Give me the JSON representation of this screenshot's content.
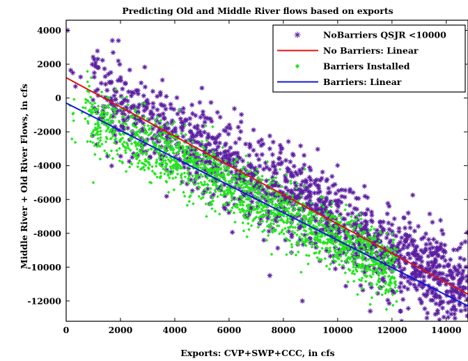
{
  "chart_data": {
    "type": "scatter",
    "title": "Predicting Old and Middle River flows based on exports",
    "xlabel": "Exports: CVP+SWP+CCC, in cfs",
    "ylabel": "Middle River + Old River Flows, in cfs",
    "xlim": [
      0,
      14800
    ],
    "ylim": [
      -13200,
      4600
    ],
    "xticks": [
      0,
      2000,
      4000,
      6000,
      8000,
      10000,
      12000,
      14000
    ],
    "yticks": [
      4000,
      2000,
      0,
      -2000,
      -4000,
      -6000,
      -8000,
      -10000,
      -12000
    ],
    "grid": false,
    "legend_position": "top-right",
    "series": [
      {
        "name": "NoBarriers QSJR <10000",
        "kind": "scatter",
        "marker": "asterisk",
        "color": "#5b1fa0",
        "x_range": [
          0,
          14800
        ],
        "fit": {
          "slope": -0.865,
          "intercept": 1200
        },
        "spread": 1300,
        "n": 1500,
        "highlights": [
          {
            "x": 50,
            "y": 4000
          },
          {
            "x": 1700,
            "y": 3400
          },
          {
            "x": 14700,
            "y": -8500
          },
          {
            "x": 13600,
            "y": -9700
          },
          {
            "x": 14300,
            "y": -10000
          },
          {
            "x": 11200,
            "y": -12600
          },
          {
            "x": 8700,
            "y": -12000
          },
          {
            "x": 7500,
            "y": -10500
          },
          {
            "x": 12600,
            "y": -6800
          }
        ]
      },
      {
        "name": "No Barriers: Linear",
        "kind": "line",
        "color": "#e01010",
        "x": [
          0,
          14800
        ],
        "y": [
          1200,
          -11600
        ]
      },
      {
        "name": "Barriers Installed",
        "kind": "scatter",
        "marker": "diamond",
        "color": "#22e61c",
        "x_range": [
          0,
          12200
        ],
        "fit": {
          "slope": -0.81,
          "intercept": -300
        },
        "spread": 900,
        "n": 1800,
        "highlights": [
          {
            "x": 1000,
            "y": -5000
          },
          {
            "x": 11200,
            "y": -12200
          },
          {
            "x": 11800,
            "y": -12500
          }
        ]
      },
      {
        "name": "Barriers: Linear",
        "kind": "line",
        "color": "#1018d8",
        "x": [
          0,
          14800
        ],
        "y": [
          -300,
          -12300
        ]
      }
    ]
  },
  "colors": {
    "axes": "#000000",
    "background": "#ffffff"
  }
}
